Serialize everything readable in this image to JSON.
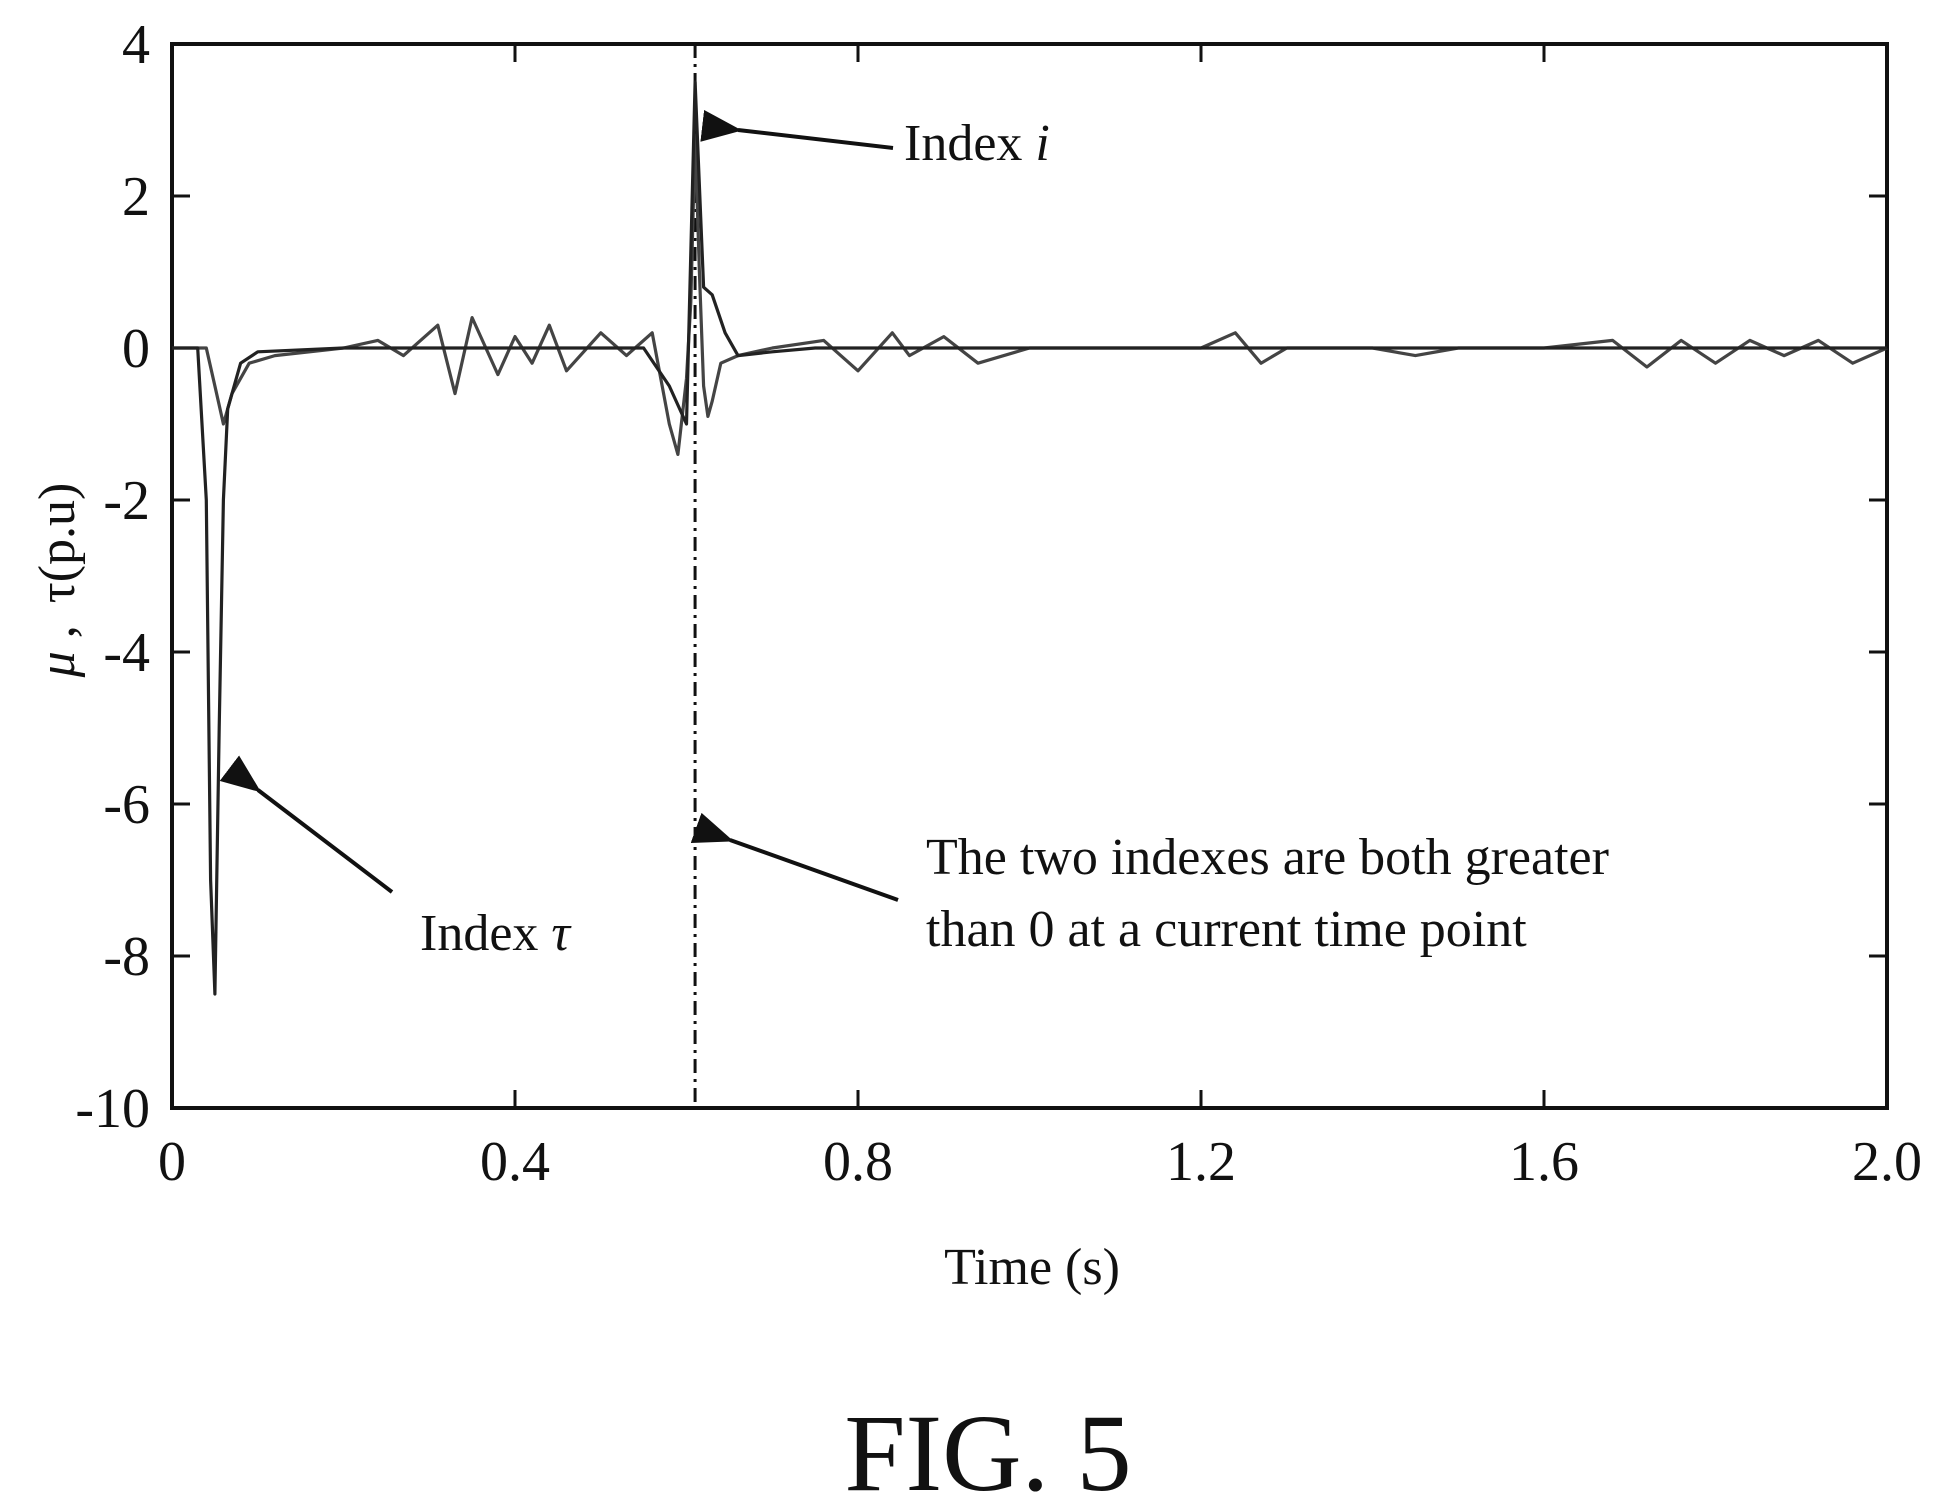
{
  "chart_data": {
    "type": "line",
    "xlabel": "Time (s)",
    "ylabel_main": "μ",
    "ylabel_sep": " ,",
    "ylabel_rest": "τ(p.u)",
    "xlim": [
      0,
      2.0
    ],
    "ylim": [
      -10,
      4
    ],
    "x_ticks": [
      0,
      0.4,
      0.8,
      1.2,
      1.6,
      2.0
    ],
    "x_tick_labels": [
      "0",
      "0.4",
      "0.8",
      "1.2",
      "1.6",
      "2.0"
    ],
    "y_ticks": [
      4,
      2,
      0,
      -2,
      -4,
      -6,
      -8,
      -10
    ],
    "y_tick_labels": [
      "4",
      "2",
      "0",
      "-2",
      "-4",
      "-6",
      "-8",
      "-10"
    ],
    "grid": false,
    "vline_x": 0.61,
    "series": [
      {
        "values": [
          [
            0,
            0
          ],
          [
            0.04,
            0
          ],
          [
            0.05,
            -0.5
          ],
          [
            0.06,
            -1.0
          ],
          [
            0.07,
            -0.6
          ],
          [
            0.09,
            -0.2
          ],
          [
            0.12,
            -0.1
          ],
          [
            0.2,
            0
          ],
          [
            0.24,
            0.1
          ],
          [
            0.27,
            -0.1
          ],
          [
            0.31,
            0.3
          ],
          [
            0.33,
            -0.6
          ],
          [
            0.35,
            0.4
          ],
          [
            0.38,
            -0.35
          ],
          [
            0.4,
            0.15
          ],
          [
            0.42,
            -0.2
          ],
          [
            0.44,
            0.3
          ],
          [
            0.46,
            -0.3
          ],
          [
            0.5,
            0.2
          ],
          [
            0.53,
            -0.1
          ],
          [
            0.56,
            0.2
          ],
          [
            0.58,
            -1.0
          ],
          [
            0.59,
            -1.4
          ],
          [
            0.6,
            -0.4
          ],
          [
            0.605,
            0.6
          ],
          [
            0.61,
            2.8
          ],
          [
            0.615,
            1.0
          ],
          [
            0.62,
            -0.5
          ],
          [
            0.625,
            -0.9
          ],
          [
            0.63,
            -0.7
          ],
          [
            0.64,
            -0.2
          ],
          [
            0.66,
            -0.1
          ],
          [
            0.7,
            0
          ],
          [
            0.76,
            0.1
          ],
          [
            0.8,
            -0.3
          ],
          [
            0.84,
            0.2
          ],
          [
            0.86,
            -0.1
          ],
          [
            0.9,
            0.15
          ],
          [
            0.94,
            -0.2
          ],
          [
            1.0,
            0
          ],
          [
            1.2,
            0
          ],
          [
            1.24,
            0.2
          ],
          [
            1.27,
            -0.2
          ],
          [
            1.3,
            0
          ],
          [
            1.4,
            0
          ],
          [
            1.45,
            -0.1
          ],
          [
            1.5,
            0
          ],
          [
            1.6,
            0
          ],
          [
            1.68,
            0.1
          ],
          [
            1.72,
            -0.25
          ],
          [
            1.76,
            0.1
          ],
          [
            1.8,
            -0.2
          ],
          [
            1.84,
            0.1
          ],
          [
            1.88,
            -0.1
          ],
          [
            1.92,
            0.1
          ],
          [
            1.96,
            -0.2
          ],
          [
            2.0,
            0
          ]
        ]
      },
      {
        "values": [
          [
            0,
            0
          ],
          [
            0.03,
            0
          ],
          [
            0.04,
            -2.0
          ],
          [
            0.045,
            -7.0
          ],
          [
            0.05,
            -8.5
          ],
          [
            0.055,
            -5.0
          ],
          [
            0.06,
            -2.0
          ],
          [
            0.065,
            -0.8
          ],
          [
            0.08,
            -0.2
          ],
          [
            0.1,
            -0.05
          ],
          [
            0.2,
            0
          ],
          [
            0.4,
            0
          ],
          [
            0.55,
            0
          ],
          [
            0.58,
            -0.5
          ],
          [
            0.6,
            -1.0
          ],
          [
            0.61,
            3.5
          ],
          [
            0.62,
            0.8
          ],
          [
            0.63,
            0.7
          ],
          [
            0.645,
            0.2
          ],
          [
            0.66,
            -0.1
          ],
          [
            0.7,
            -0.05
          ],
          [
            0.75,
            0
          ],
          [
            1.0,
            0
          ],
          [
            1.5,
            0
          ],
          [
            2.0,
            0
          ]
        ]
      }
    ]
  },
  "annotations": {
    "index_i_text": "Index ",
    "index_i_var": "i",
    "index_tau_text": "Index ",
    "index_tau_var": "τ",
    "both_line1": "The two indexes are both greater",
    "both_line2": "than 0 at a current time point"
  },
  "figure_title": "FIG. 5"
}
